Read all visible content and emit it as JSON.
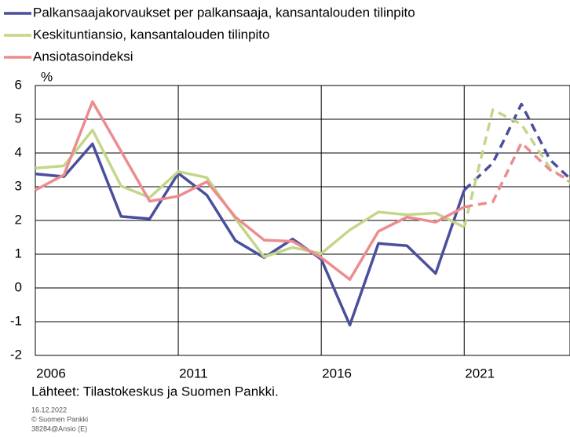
{
  "chart_data": {
    "type": "line",
    "y_label": "%",
    "source": "Lähteet: Tilastokeskus ja Suomen Pankki.",
    "footer_lines": [
      "16.12.2022",
      "© Suomen Pankki",
      "38284@Ansio (E)"
    ],
    "x": [
      2006,
      2007,
      2008,
      2009,
      2010,
      2011,
      2012,
      2013,
      2014,
      2015,
      2016,
      2017,
      2018,
      2019,
      2020,
      2021,
      2022,
      2023,
      2024,
      2025
    ],
    "forecast_from_x": 2021,
    "series": [
      {
        "name": "Palkansaajakorvaukset per palkansaaja, kansantalouden tilinpito",
        "color": "#4a4f9c",
        "values": [
          3.38,
          3.3,
          4.27,
          2.12,
          2.05,
          3.4,
          2.75,
          1.4,
          0.9,
          1.45,
          0.85,
          -1.1,
          1.32,
          1.25,
          0.43,
          2.9,
          3.7,
          5.45,
          3.8,
          3.0
        ]
      },
      {
        "name": "Keskituntiansio, kansantalouden tilinpito",
        "color": "#c3d68a",
        "values": [
          3.55,
          3.62,
          4.68,
          3.02,
          2.68,
          3.45,
          3.27,
          2.05,
          0.92,
          1.2,
          1.02,
          1.72,
          2.25,
          2.17,
          2.22,
          1.8,
          5.28,
          4.85,
          3.55,
          2.95
        ]
      },
      {
        "name": "Ansiotasoindeksi",
        "color": "#ec8c8f",
        "values": [
          2.9,
          3.35,
          5.52,
          4.05,
          2.57,
          2.72,
          3.15,
          2.1,
          1.42,
          1.38,
          0.9,
          0.25,
          1.68,
          2.1,
          1.95,
          2.4,
          2.55,
          4.3,
          3.5,
          3.05
        ]
      }
    ],
    "xlim": [
      2006,
      2024.7
    ],
    "xticks": [
      2006,
      2011,
      2016,
      2021
    ],
    "ylim": [
      -2,
      6
    ],
    "yticks": [
      -2,
      -1,
      0,
      1,
      2,
      3,
      4,
      5,
      6
    ],
    "grid": true
  }
}
